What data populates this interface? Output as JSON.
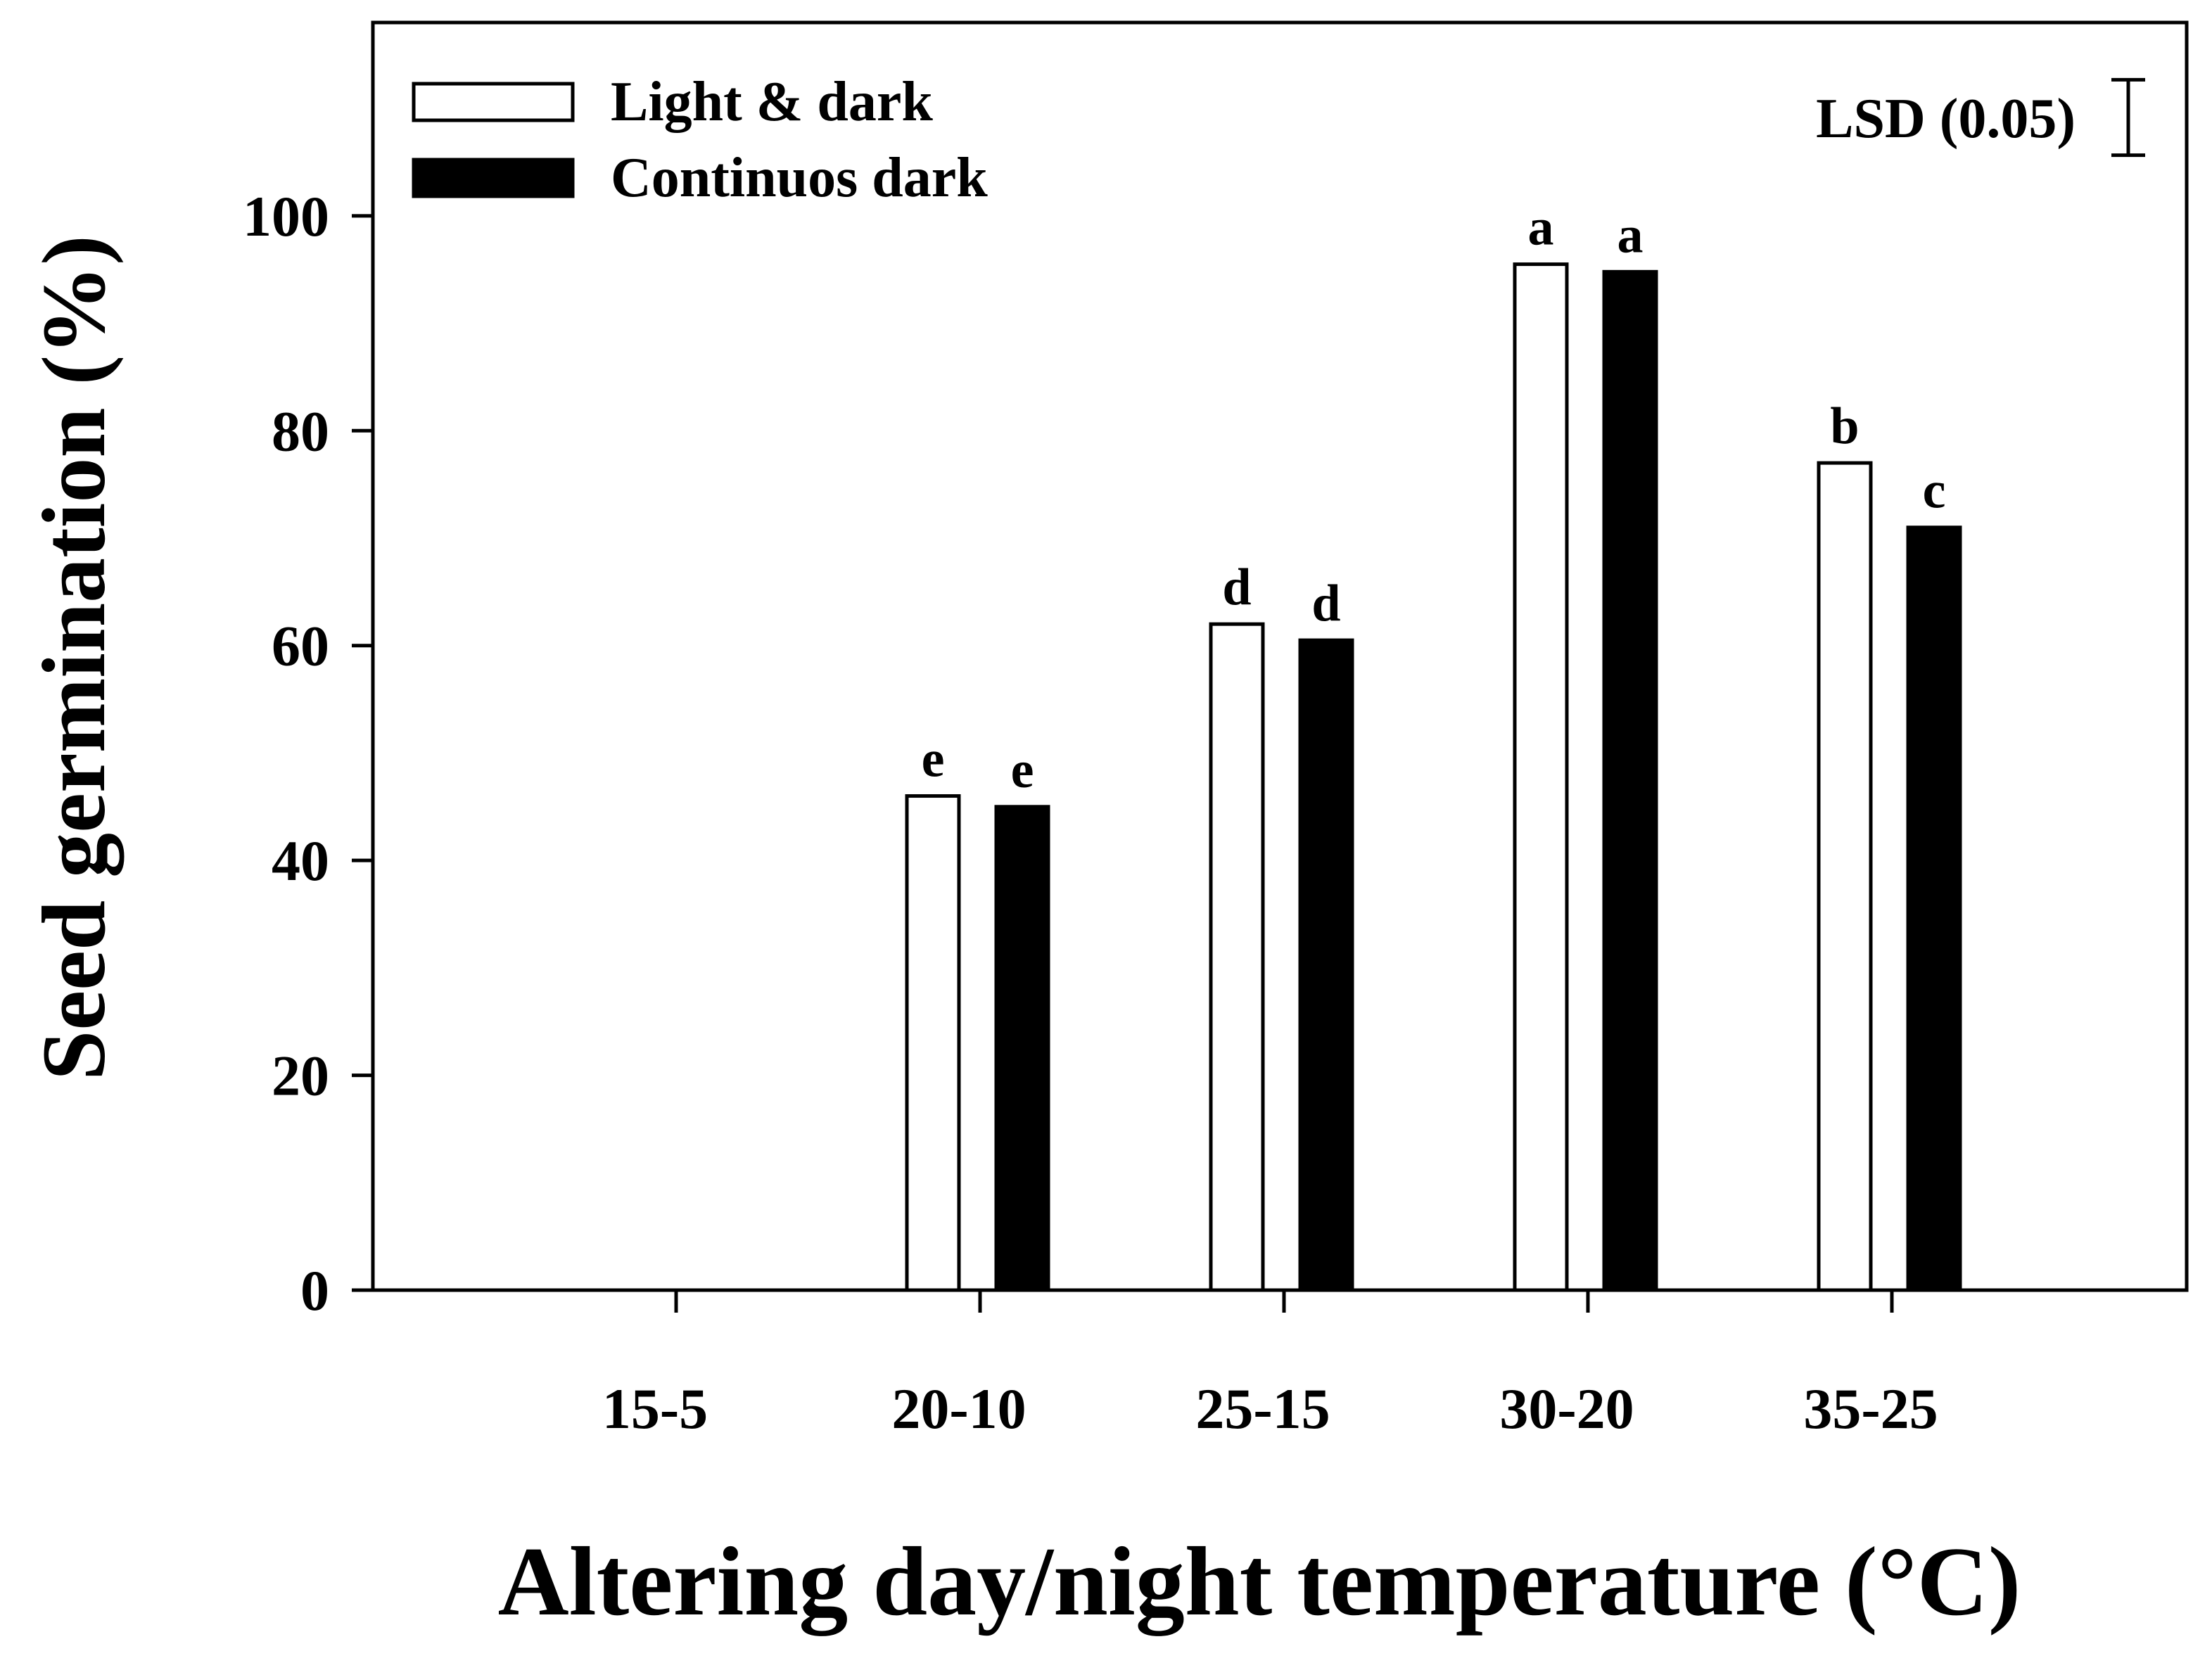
{
  "chart_data": {
    "type": "bar",
    "categories": [
      "15-5",
      "20-10",
      "25-15",
      "30-20",
      "35-25"
    ],
    "series": [
      {
        "name": "Light & dark",
        "fill": "#ffffff",
        "values": [
          0,
          46,
          62,
          95.5,
          77
        ],
        "letters": [
          "",
          "e",
          "d",
          "a",
          "b"
        ]
      },
      {
        "name": "Continuos dark",
        "fill": "#000000",
        "values": [
          0,
          45,
          60.5,
          94.8,
          71
        ],
        "letters": [
          "",
          "e",
          "d",
          "a",
          "c"
        ]
      }
    ],
    "xlabel": "Altering day/night temperature (°C)",
    "ylabel": "Seed germination (%)",
    "ylim": [
      0,
      118
    ],
    "yticks": [
      0,
      20,
      40,
      60,
      80,
      100
    ],
    "grid": false,
    "legend": "top-left",
    "lsd": {
      "label": "LSD (0.05)",
      "value": 3
    }
  }
}
